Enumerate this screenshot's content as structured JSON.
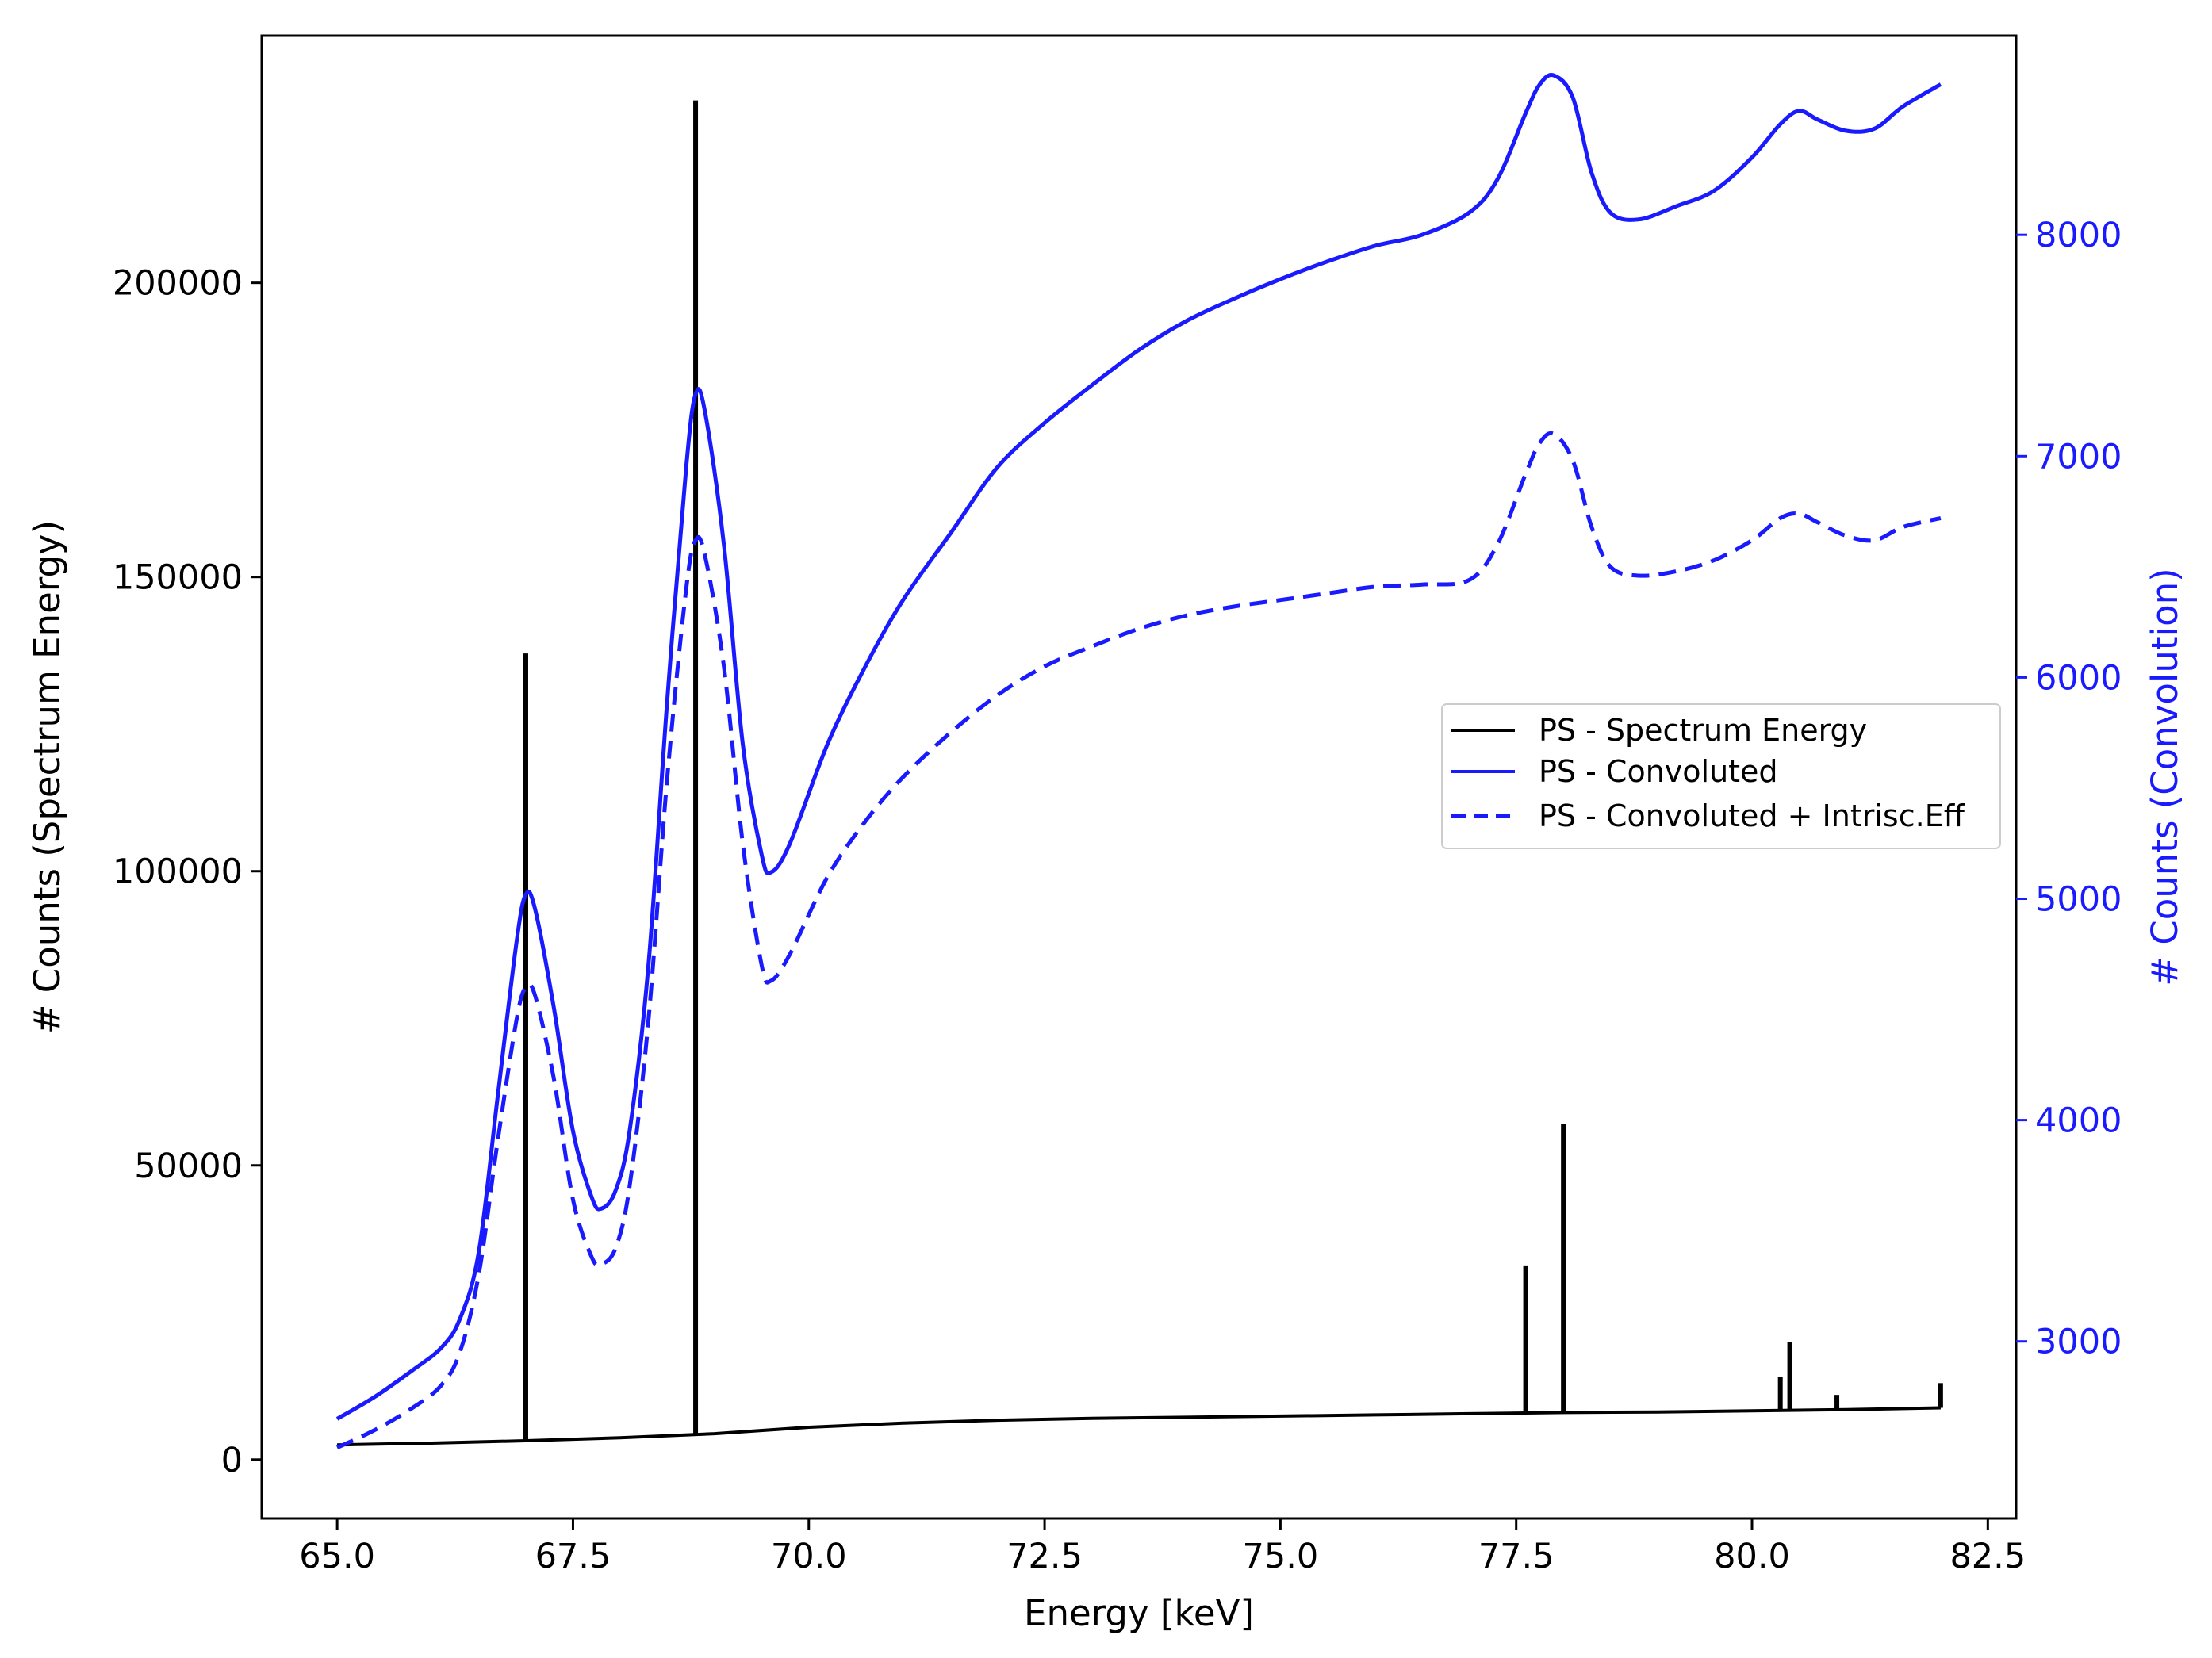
{
  "chart_data": {
    "type": "line",
    "title": "",
    "xlabel": "Energy [keV]",
    "ylabel_left": "# Counts (Spectrum Energy)",
    "ylabel_right": "# Counts (Convolution)",
    "xlim": [
      64.2,
      82.8
    ],
    "ylim_left": [
      -10000,
      242000
    ],
    "ylim_right": [
      2200,
      8900
    ],
    "x_ticks": [
      65.0,
      67.5,
      70.0,
      72.5,
      75.0,
      77.5,
      80.0,
      82.5
    ],
    "x_tick_labels": [
      "65.0",
      "67.5",
      "70.0",
      "72.5",
      "75.0",
      "77.5",
      "80.0",
      "82.5"
    ],
    "y_left_ticks": [
      0,
      50000,
      100000,
      150000,
      200000
    ],
    "y_left_tick_labels": [
      "0",
      "50000",
      "100000",
      "150000",
      "200000"
    ],
    "y_right_ticks": [
      3000,
      4000,
      5000,
      6000,
      7000,
      8000
    ],
    "y_right_tick_labels": [
      "3000",
      "4000",
      "5000",
      "6000",
      "7000",
      "8000"
    ],
    "grid": false,
    "legend_position": "center-right",
    "colors": {
      "spectrum": "#000000",
      "convolution": "#1a1aff",
      "right_axis": "#1a1aff"
    },
    "series": [
      {
        "name": "PS - Spectrum Energy",
        "axis": "left",
        "style": "solid",
        "color": "#000000",
        "baseline": [
          [
            65.0,
            2500
          ],
          [
            66.0,
            2800
          ],
          [
            67.0,
            3200
          ],
          [
            68.0,
            3700
          ],
          [
            69.0,
            4400
          ],
          [
            70.0,
            5500
          ],
          [
            71.0,
            6200
          ],
          [
            72.0,
            6700
          ],
          [
            73.0,
            7000
          ],
          [
            74.0,
            7200
          ],
          [
            75.0,
            7400
          ],
          [
            76.0,
            7600
          ],
          [
            77.0,
            7800
          ],
          [
            78.0,
            8000
          ],
          [
            79.0,
            8100
          ],
          [
            80.0,
            8300
          ],
          [
            81.0,
            8500
          ],
          [
            82.0,
            8800
          ]
        ],
        "peaks": [
          [
            67.0,
            137000
          ],
          [
            68.8,
            231000
          ],
          [
            77.6,
            33000
          ],
          [
            78.0,
            57000
          ],
          [
            80.3,
            14000
          ],
          [
            80.4,
            20000
          ],
          [
            80.9,
            11000
          ],
          [
            82.0,
            13000
          ]
        ]
      },
      {
        "name": "PS - Convoluted",
        "axis": "right",
        "style": "solid",
        "color": "#1a1aff",
        "points": [
          [
            65.0,
            2650
          ],
          [
            65.4,
            2750
          ],
          [
            65.8,
            2870
          ],
          [
            66.1,
            2970
          ],
          [
            66.3,
            3100
          ],
          [
            66.5,
            3400
          ],
          [
            66.7,
            4100
          ],
          [
            66.9,
            4800
          ],
          [
            67.0,
            5020
          ],
          [
            67.1,
            4950
          ],
          [
            67.3,
            4500
          ],
          [
            67.5,
            3950
          ],
          [
            67.7,
            3650
          ],
          [
            67.8,
            3600
          ],
          [
            67.95,
            3680
          ],
          [
            68.1,
            3950
          ],
          [
            68.3,
            4700
          ],
          [
            68.5,
            5900
          ],
          [
            68.7,
            6950
          ],
          [
            68.8,
            7280
          ],
          [
            68.9,
            7200
          ],
          [
            69.1,
            6600
          ],
          [
            69.3,
            5700
          ],
          [
            69.5,
            5200
          ],
          [
            69.6,
            5120
          ],
          [
            69.8,
            5250
          ],
          [
            70.2,
            5700
          ],
          [
            70.6,
            6050
          ],
          [
            71.0,
            6350
          ],
          [
            71.5,
            6650
          ],
          [
            72.0,
            6950
          ],
          [
            72.5,
            7150
          ],
          [
            73.0,
            7320
          ],
          [
            73.5,
            7480
          ],
          [
            74.0,
            7610
          ],
          [
            74.5,
            7710
          ],
          [
            75.0,
            7800
          ],
          [
            75.5,
            7880
          ],
          [
            76.0,
            7950
          ],
          [
            76.5,
            8000
          ],
          [
            77.0,
            8100
          ],
          [
            77.3,
            8250
          ],
          [
            77.6,
            8550
          ],
          [
            77.75,
            8680
          ],
          [
            77.9,
            8720
          ],
          [
            78.1,
            8620
          ],
          [
            78.3,
            8280
          ],
          [
            78.5,
            8100
          ],
          [
            78.8,
            8070
          ],
          [
            79.2,
            8130
          ],
          [
            79.6,
            8200
          ],
          [
            80.0,
            8350
          ],
          [
            80.3,
            8500
          ],
          [
            80.5,
            8560
          ],
          [
            80.7,
            8520
          ],
          [
            81.0,
            8470
          ],
          [
            81.3,
            8480
          ],
          [
            81.6,
            8580
          ],
          [
            82.0,
            8680
          ]
        ]
      },
      {
        "name": "PS - Convoluted + Intrisc.Eff",
        "axis": "right",
        "style": "dashed",
        "color": "#1a1aff",
        "points": [
          [
            65.0,
            2520
          ],
          [
            65.4,
            2600
          ],
          [
            65.8,
            2700
          ],
          [
            66.1,
            2800
          ],
          [
            66.3,
            2950
          ],
          [
            66.5,
            3300
          ],
          [
            66.7,
            3900
          ],
          [
            66.9,
            4450
          ],
          [
            67.0,
            4600
          ],
          [
            67.1,
            4560
          ],
          [
            67.3,
            4180
          ],
          [
            67.5,
            3640
          ],
          [
            67.7,
            3380
          ],
          [
            67.8,
            3350
          ],
          [
            67.95,
            3420
          ],
          [
            68.1,
            3700
          ],
          [
            68.3,
            4450
          ],
          [
            68.5,
            5550
          ],
          [
            68.7,
            6400
          ],
          [
            68.8,
            6620
          ],
          [
            68.9,
            6550
          ],
          [
            69.1,
            6050
          ],
          [
            69.3,
            5250
          ],
          [
            69.5,
            4700
          ],
          [
            69.6,
            4630
          ],
          [
            69.8,
            4750
          ],
          [
            70.2,
            5100
          ],
          [
            70.6,
            5350
          ],
          [
            71.0,
            5550
          ],
          [
            71.5,
            5750
          ],
          [
            72.0,
            5920
          ],
          [
            72.5,
            6050
          ],
          [
            73.0,
            6140
          ],
          [
            73.5,
            6220
          ],
          [
            74.0,
            6280
          ],
          [
            74.5,
            6320
          ],
          [
            75.0,
            6350
          ],
          [
            75.5,
            6380
          ],
          [
            76.0,
            6410
          ],
          [
            76.5,
            6420
          ],
          [
            77.0,
            6440
          ],
          [
            77.3,
            6600
          ],
          [
            77.6,
            6920
          ],
          [
            77.75,
            7060
          ],
          [
            77.9,
            7100
          ],
          [
            78.1,
            6980
          ],
          [
            78.3,
            6680
          ],
          [
            78.5,
            6500
          ],
          [
            78.8,
            6460
          ],
          [
            79.2,
            6480
          ],
          [
            79.6,
            6530
          ],
          [
            80.0,
            6620
          ],
          [
            80.3,
            6720
          ],
          [
            80.5,
            6740
          ],
          [
            80.7,
            6700
          ],
          [
            81.0,
            6640
          ],
          [
            81.3,
            6620
          ],
          [
            81.6,
            6680
          ],
          [
            82.0,
            6720
          ]
        ]
      }
    ]
  }
}
